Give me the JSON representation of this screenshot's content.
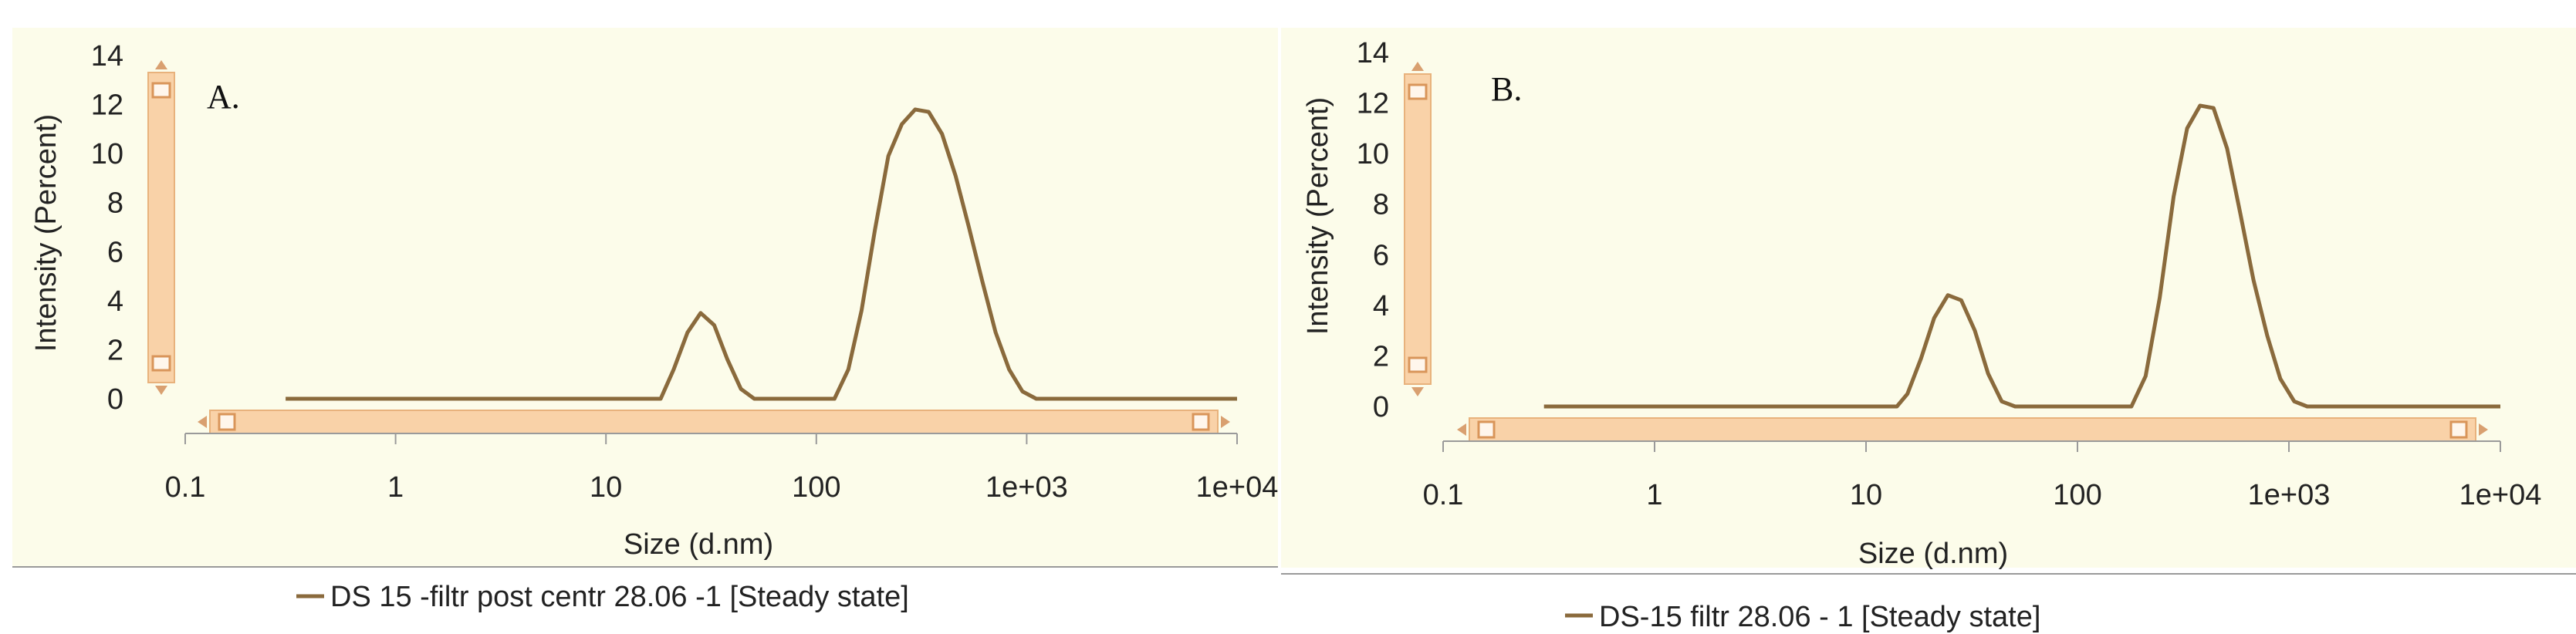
{
  "chart_data": [
    {
      "type": "line",
      "panel_label": "A.",
      "xlabel": "Size (d.nm)",
      "ylabel": "Intensity (Percent)",
      "x_scale": "log",
      "xlim": [
        0.1,
        10000
      ],
      "ylim": [
        0,
        14
      ],
      "x_ticks": [
        "0.1",
        "1",
        "10",
        "100",
        "1e+03",
        "1e+04"
      ],
      "y_ticks": [
        "0",
        "2",
        "4",
        "6",
        "8",
        "10",
        "12",
        "14"
      ],
      "grid": false,
      "legend_position": "bottom",
      "series": [
        {
          "name": "DS 15 -filtr post centr 28.06 -1 [Steady state]",
          "color": "#8a6a3c",
          "x": [
            0.3,
            18.2,
            21.0,
            24.4,
            28.2,
            32.7,
            37.8,
            43.8,
            50.7,
            100,
            122,
            142,
            164,
            190,
            220,
            255,
            295,
            342,
            396,
            459,
            531,
            615,
            712,
            825,
            955,
            1110,
            1280,
            10000
          ],
          "y": [
            0,
            0,
            1.2,
            2.7,
            3.5,
            3.0,
            1.6,
            0.4,
            0,
            0,
            0,
            1.2,
            3.6,
            6.9,
            9.9,
            11.2,
            11.8,
            11.7,
            10.8,
            9.1,
            7.0,
            4.8,
            2.7,
            1.2,
            0.3,
            0,
            0,
            0
          ]
        }
      ]
    },
    {
      "type": "line",
      "panel_label": "B.",
      "xlabel": "Size (d.nm)",
      "ylabel": "Intensity (Percent)",
      "x_scale": "log",
      "xlim": [
        0.1,
        10000
      ],
      "ylim": [
        0,
        14
      ],
      "x_ticks": [
        "0.1",
        "1",
        "10",
        "100",
        "1e+03",
        "1e+04"
      ],
      "y_ticks": [
        "0",
        "2",
        "4",
        "6",
        "8",
        "10",
        "12",
        "14"
      ],
      "grid": false,
      "legend_position": "bottom",
      "series": [
        {
          "name": "DS-15 filtr 28.06 - 1 [Steady state]",
          "color": "#8a6a3c",
          "x": [
            0.3,
            14.0,
            15.7,
            18.2,
            21.0,
            24.4,
            28.2,
            32.7,
            37.8,
            43.8,
            50.7,
            150,
            180,
            210,
            245,
            285,
            330,
            380,
            440,
            510,
            590,
            680,
            790,
            910,
            1060,
            1220,
            1420,
            10000
          ],
          "y": [
            0,
            0,
            0.5,
            1.9,
            3.5,
            4.4,
            4.2,
            3.0,
            1.3,
            0.2,
            0,
            0,
            0,
            1.2,
            4.3,
            8.3,
            11.0,
            11.9,
            11.8,
            10.2,
            7.6,
            5.0,
            2.8,
            1.1,
            0.2,
            0,
            0,
            0
          ]
        }
      ]
    }
  ]
}
